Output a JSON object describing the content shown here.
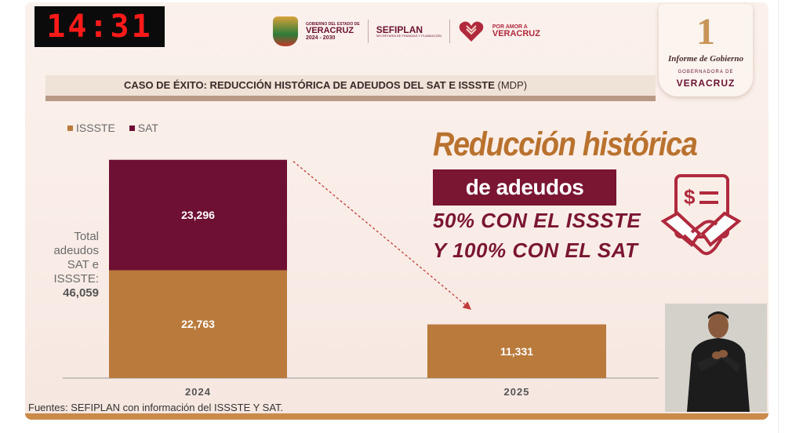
{
  "clock": "14:31",
  "logos": {
    "gov_small": "GOBIERNO DEL ESTADO DE",
    "gov_name": "VERACRUZ",
    "gov_years": "2024 - 2030",
    "sefiplan": "SEFIPLAN",
    "sefiplan_sub": "SECRETARÍA DE FINANZAS Y PLANEACIÓN",
    "amor_small": "POR AMOR A",
    "amor_name": "VERACRUZ"
  },
  "informe": {
    "number": "1",
    "title": "Informe de Gobierno",
    "subtitle": "GOBERNADORA DE",
    "state": "VERACRUZ"
  },
  "header": {
    "title": "CASO DE ÉXITO: REDUCCIÓN HISTÓRICA DE ADEUDOS DEL SAT E ISSSTE",
    "unit": "(MDP)"
  },
  "total": {
    "label_lines": [
      "Total",
      "adeudos",
      "SAT e",
      "ISSSTE:"
    ],
    "value": "46,059"
  },
  "headline": {
    "line1": "Reducción histórica",
    "line2": "de adeudos",
    "line3": "50% CON EL ISSSTE",
    "line4": "Y 100% CON EL SAT"
  },
  "footer": {
    "sources": "Fuentes: SEFIPLAN con información del ISSSTE Y SAT."
  },
  "colors": {
    "issste": "#b97a3c",
    "sat": "#6e1033",
    "headline_gold": "#b9722e",
    "headline_red": "#7a1532"
  },
  "chart_data": {
    "type": "bar",
    "stacked": true,
    "categories": [
      "2024",
      "2025"
    ],
    "series": [
      {
        "name": "ISSSTE",
        "values": [
          22763,
          11331
        ],
        "labels": [
          "22,763",
          "11,331"
        ]
      },
      {
        "name": "SAT",
        "values": [
          23296,
          0
        ],
        "labels": [
          "23,296",
          ""
        ]
      }
    ],
    "legend": [
      "ISSSTE",
      "SAT"
    ],
    "legend_position": "top-left",
    "ylim": [
      0,
      48000
    ],
    "grid": false,
    "annotation": "dashed arrow from 2024 bar to 2025 bar"
  }
}
